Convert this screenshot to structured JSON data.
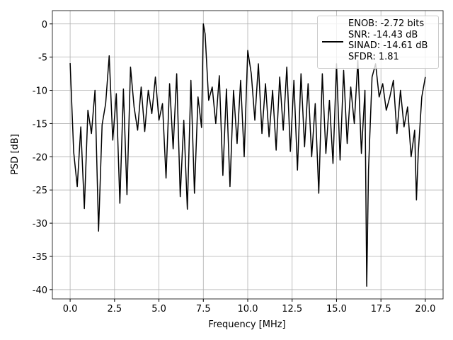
{
  "chart_data": {
    "type": "line",
    "xlabel": "Frequency [MHz]",
    "ylabel": "PSD [dB]",
    "x": [
      0,
      0.2,
      0.4,
      0.6,
      0.8,
      1.0,
      1.2,
      1.4,
      1.6,
      1.8,
      2.0,
      2.2,
      2.4,
      2.6,
      2.8,
      3.0,
      3.2,
      3.4,
      3.6,
      3.8,
      4.0,
      4.2,
      4.4,
      4.6,
      4.8,
      5.0,
      5.2,
      5.4,
      5.6,
      5.8,
      6.0,
      6.2,
      6.4,
      6.6,
      6.8,
      7.0,
      7.2,
      7.4,
      7.5,
      7.6,
      7.8,
      8.0,
      8.2,
      8.4,
      8.6,
      8.8,
      9.0,
      9.2,
      9.4,
      9.6,
      9.8,
      10.0,
      10.2,
      10.4,
      10.6,
      10.8,
      11.0,
      11.2,
      11.4,
      11.6,
      11.8,
      12.0,
      12.2,
      12.4,
      12.6,
      12.8,
      13.0,
      13.2,
      13.4,
      13.6,
      13.8,
      14.0,
      14.2,
      14.4,
      14.6,
      14.8,
      15.0,
      15.2,
      15.4,
      15.6,
      15.8,
      16.0,
      16.2,
      16.4,
      16.6,
      16.7,
      16.8,
      17.0,
      17.2,
      17.4,
      17.6,
      17.8,
      18.0,
      18.2,
      18.4,
      18.6,
      18.8,
      19.0,
      19.2,
      19.4,
      19.5,
      19.6,
      19.8,
      20.0
    ],
    "series": [
      {
        "name": "ENOB: -2.72 bits\nSNR: -14.43 dB\nSINAD: -14.61 dB\nSFDR: 1.81",
        "color": "#000000",
        "values": [
          -5.9,
          -19.3,
          -24.5,
          -15.5,
          -27.8,
          -13.0,
          -16.5,
          -10.0,
          -31.2,
          -15.2,
          -12.0,
          -4.8,
          -17.5,
          -10.5,
          -27.0,
          -9.8,
          -25.7,
          -6.5,
          -12.5,
          -16.0,
          -9.5,
          -16.2,
          -10.0,
          -13.5,
          -8.0,
          -14.5,
          -12.0,
          -23.2,
          -9.0,
          -18.8,
          -7.5,
          -26.0,
          -14.5,
          -27.9,
          -8.5,
          -25.5,
          -11.0,
          -15.6,
          0.0,
          -1.5,
          -11.5,
          -9.5,
          -15.0,
          -7.8,
          -22.8,
          -9.8,
          -24.5,
          -10.0,
          -18.0,
          -8.5,
          -20.0,
          -4.0,
          -7.5,
          -14.5,
          -6.0,
          -16.5,
          -9.0,
          -17.0,
          -10.0,
          -19.0,
          -8.0,
          -16.0,
          -6.5,
          -19.2,
          -8.5,
          -22.0,
          -7.5,
          -18.5,
          -9.0,
          -20.0,
          -12.0,
          -25.5,
          -7.5,
          -19.5,
          -11.5,
          -21.0,
          -6.0,
          -20.5,
          -7.0,
          -18.0,
          -9.5,
          -15.0,
          -5.5,
          -19.5,
          -10.0,
          -39.5,
          -22.0,
          -8.0,
          -6.0,
          -11.0,
          -9.0,
          -13.0,
          -11.0,
          -8.5,
          -16.5,
          -10.0,
          -15.5,
          -12.5,
          -20.0,
          -16.0,
          -26.5,
          -19.5,
          -11.0,
          -8.0
        ]
      }
    ],
    "xlim": [
      -1.0,
      21.0
    ],
    "ylim": [
      -41.4,
      2.0
    ],
    "xticks": [
      {
        "value": 0,
        "label": "0.0"
      },
      {
        "value": 2.5,
        "label": "2.5"
      },
      {
        "value": 5,
        "label": "5.0"
      },
      {
        "value": 7.5,
        "label": "7.5"
      },
      {
        "value": 10,
        "label": "10.0"
      },
      {
        "value": 12.5,
        "label": "12.5"
      },
      {
        "value": 15,
        "label": "15.0"
      },
      {
        "value": 17.5,
        "label": "17.5"
      },
      {
        "value": 20,
        "label": "20.0"
      }
    ],
    "yticks": [
      0,
      -5,
      -10,
      -15,
      -20,
      -25,
      -30,
      -35,
      -40
    ],
    "grid": true,
    "legend": "upper right"
  }
}
